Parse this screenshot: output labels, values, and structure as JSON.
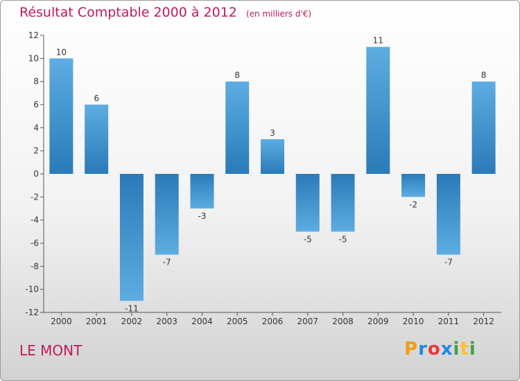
{
  "header": {
    "title": "Résultat Comptable 2000 à 2012",
    "subtitle": "(en milliers d'€)"
  },
  "commune": "LE MONT",
  "logo": {
    "text": "Proxiti",
    "letters": [
      "P",
      "r",
      "o",
      "x",
      "i",
      "t",
      "i"
    ],
    "colors": [
      "#f39c12",
      "#1e88e5",
      "#e53935",
      "#1e88e5",
      "#43a047",
      "#fbc02d",
      "#43a047"
    ]
  },
  "colors": {
    "bar_dark": "#2a7ab8",
    "bar_light": "#5dade2",
    "title": "#c2185b"
  },
  "chart_data": {
    "type": "bar",
    "title": "Résultat Comptable 2000 à 2012",
    "subtitle": "(en milliers d'€)",
    "xlabel": "",
    "ylabel": "",
    "categories": [
      "2000",
      "2001",
      "2002",
      "2003",
      "2004",
      "2005",
      "2006",
      "2007",
      "2008",
      "2009",
      "2010",
      "2011",
      "2012"
    ],
    "values": [
      10,
      6,
      -11,
      -7,
      -3,
      8,
      3,
      -5,
      -5,
      11,
      -2,
      -7,
      8
    ],
    "ylim": [
      -12,
      12
    ],
    "yticks": [
      -12,
      -10,
      -8,
      -6,
      -4,
      -2,
      0,
      2,
      4,
      6,
      8,
      10,
      12
    ],
    "grid": false
  }
}
